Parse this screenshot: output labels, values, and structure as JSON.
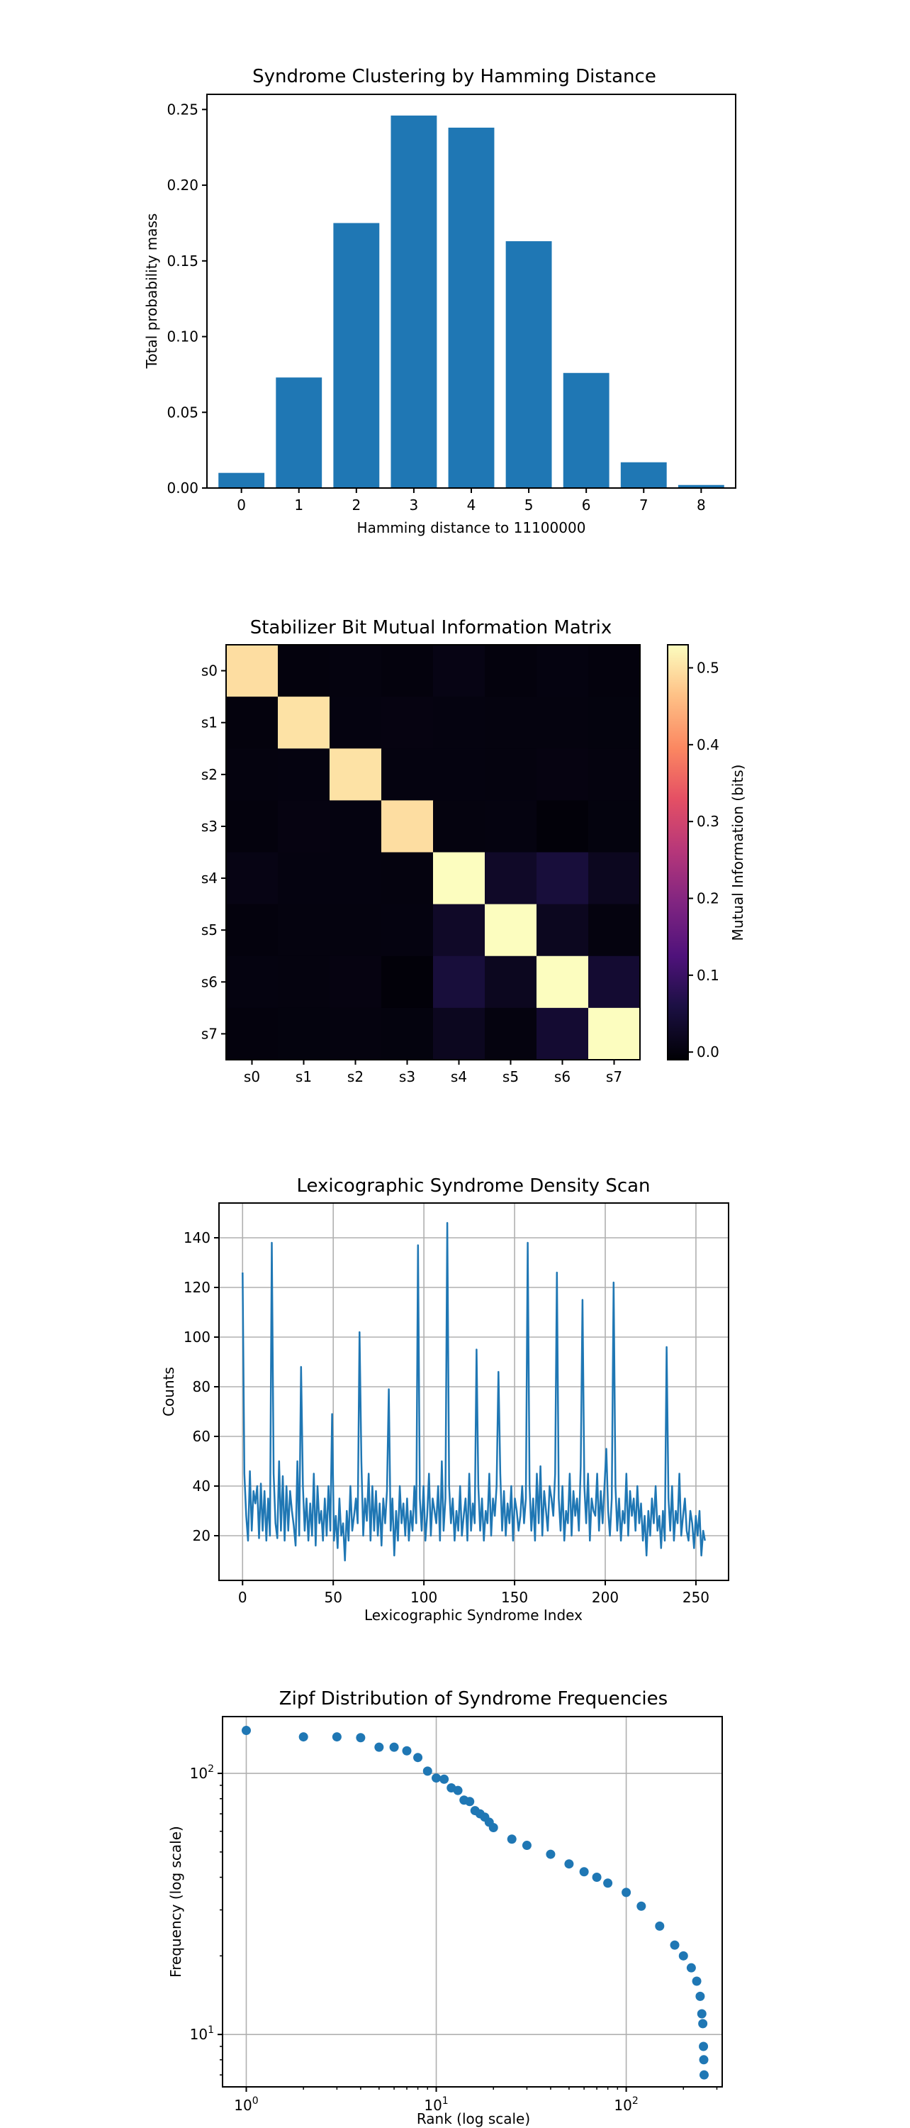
{
  "chart_data": [
    {
      "type": "bar",
      "title": "Syndrome Clustering by Hamming Distance",
      "xlabel": "Hamming distance to 11100000",
      "ylabel": "Total probability mass",
      "categories": [
        "0",
        "1",
        "2",
        "3",
        "4",
        "5",
        "6",
        "7",
        "8"
      ],
      "values": [
        0.01,
        0.073,
        0.175,
        0.246,
        0.238,
        0.163,
        0.076,
        0.017,
        0.002
      ],
      "ylim": [
        0,
        0.26
      ],
      "yticks": [
        "0.00",
        "0.05",
        "0.10",
        "0.15",
        "0.20",
        "0.25"
      ],
      "color": "#1f77b4",
      "grid": false
    },
    {
      "type": "heatmap",
      "title": "Stabilizer Bit Mutual Information Matrix",
      "row_labels": [
        "s0",
        "s1",
        "s2",
        "s3",
        "s4",
        "s5",
        "s6",
        "s7"
      ],
      "col_labels": [
        "s0",
        "s1",
        "s2",
        "s3",
        "s4",
        "s5",
        "s6",
        "s7"
      ],
      "colorbar_label": "Mutual Information (bits)",
      "colorbar_ticks": [
        "0.0",
        "0.1",
        "0.2",
        "0.3",
        "0.4",
        "0.5"
      ],
      "colormap": "magma",
      "vmin": -0.01,
      "vmax": 0.53,
      "matrix": [
        [
          0.495,
          0.0,
          0.002,
          0.0,
          0.008,
          0.0,
          0.003,
          0.0
        ],
        [
          0.0,
          0.5,
          0.003,
          0.004,
          0.003,
          0.002,
          0.002,
          0.001
        ],
        [
          0.002,
          0.003,
          0.5,
          0.003,
          0.003,
          0.002,
          0.004,
          0.002
        ],
        [
          0.0,
          0.004,
          0.003,
          0.495,
          0.002,
          0.003,
          -0.005,
          0.001
        ],
        [
          0.008,
          0.003,
          0.003,
          0.002,
          0.53,
          0.03,
          0.05,
          0.02
        ],
        [
          0.0,
          0.002,
          0.002,
          0.003,
          0.03,
          0.53,
          0.02,
          0.002
        ],
        [
          0.003,
          0.002,
          0.004,
          -0.005,
          0.05,
          0.02,
          0.53,
          0.04
        ],
        [
          0.0,
          0.001,
          0.002,
          0.001,
          0.02,
          0.002,
          0.04,
          0.53
        ]
      ]
    },
    {
      "type": "line",
      "title": "Lexicographic Syndrome Density Scan",
      "xlabel": "Lexicographic Syndrome Index",
      "ylabel": "Counts",
      "xlim": [
        -13,
        268
      ],
      "ylim": [
        2,
        154
      ],
      "xticks": [
        "0",
        "50",
        "100",
        "150",
        "200",
        "250"
      ],
      "yticks": [
        "20",
        "40",
        "60",
        "80",
        "100",
        "120",
        "140"
      ],
      "grid": true,
      "color": "#1f77b4",
      "x_range": [
        0,
        255
      ],
      "values": [
        126,
        45,
        28,
        18,
        46,
        22,
        38,
        33,
        40,
        19,
        41,
        22,
        38,
        18,
        35,
        20,
        138,
        45,
        25,
        19,
        50,
        22,
        44,
        18,
        40,
        22,
        38,
        30,
        24,
        16,
        50,
        20,
        88,
        40,
        22,
        35,
        18,
        33,
        20,
        45,
        16,
        40,
        25,
        30,
        18,
        35,
        20,
        40,
        22,
        69,
        18,
        28,
        15,
        35,
        20,
        25,
        10,
        30,
        18,
        40,
        22,
        28,
        35,
        25,
        102,
        50,
        20,
        35,
        26,
        45,
        18,
        40,
        22,
        38,
        20,
        33,
        16,
        35,
        25,
        38,
        79,
        22,
        35,
        12,
        30,
        18,
        40,
        25,
        33,
        20,
        35,
        18,
        30,
        22,
        40,
        25,
        137,
        35,
        22,
        40,
        18,
        28,
        45,
        20,
        35,
        30,
        25,
        40,
        18,
        50,
        22,
        35,
        146,
        40,
        25,
        35,
        18,
        30,
        22,
        40,
        20,
        28,
        35,
        18,
        45,
        22,
        33,
        25,
        95,
        40,
        22,
        35,
        18,
        30,
        25,
        45,
        20,
        35,
        28,
        40,
        86,
        45,
        22,
        38,
        20,
        33,
        25,
        40,
        18,
        35,
        30,
        22,
        28,
        40,
        25,
        35,
        138,
        40,
        22,
        35,
        18,
        45,
        25,
        48,
        20,
        38,
        30,
        22,
        40,
        35,
        28,
        45,
        126,
        35,
        22,
        40,
        18,
        30,
        25,
        45,
        20,
        38,
        28,
        35,
        22,
        48,
        115,
        40,
        25,
        45,
        18,
        35,
        30,
        28,
        45,
        22,
        38,
        25,
        40,
        55,
        30,
        20,
        35,
        122,
        40,
        22,
        35,
        18,
        30,
        25,
        45,
        20,
        38,
        28,
        35,
        22,
        40,
        25,
        33,
        18,
        28,
        12,
        30,
        20,
        35,
        25,
        40,
        22,
        28,
        15,
        30,
        18,
        96,
        35,
        22,
        40,
        18,
        30,
        25,
        45,
        20,
        28,
        35,
        22,
        18,
        30,
        25,
        15,
        28,
        20,
        30,
        12,
        22,
        18
      ]
    },
    {
      "type": "scatter",
      "title": "Zipf Distribution of Syndrome Frequencies",
      "xlabel": "Rank (log scale)",
      "ylabel": "Frequency (log scale)",
      "xscale": "log",
      "yscale": "log",
      "xlim": [
        0.75,
        320
      ],
      "ylim": [
        6.3,
        165
      ],
      "xticks": [
        {
          "base": "10",
          "exp": "0"
        },
        {
          "base": "10",
          "exp": "1"
        },
        {
          "base": "10",
          "exp": "2"
        }
      ],
      "yticks": [
        {
          "base": "10",
          "exp": "1"
        },
        {
          "base": "10",
          "exp": "2"
        }
      ],
      "grid": true,
      "color": "#1f77b4",
      "points": [
        [
          1,
          146
        ],
        [
          2,
          138
        ],
        [
          3,
          138
        ],
        [
          4,
          137
        ],
        [
          5,
          126
        ],
        [
          6,
          126
        ],
        [
          7,
          122
        ],
        [
          8,
          115
        ],
        [
          9,
          102
        ],
        [
          10,
          96
        ],
        [
          11,
          95
        ],
        [
          12,
          88
        ],
        [
          13,
          86
        ],
        [
          14,
          79
        ],
        [
          15,
          78
        ],
        [
          16,
          72
        ],
        [
          17,
          70
        ],
        [
          18,
          68
        ],
        [
          19,
          65
        ],
        [
          20,
          62
        ],
        [
          25,
          56
        ],
        [
          30,
          53
        ],
        [
          40,
          49
        ],
        [
          50,
          45
        ],
        [
          60,
          42
        ],
        [
          70,
          40
        ],
        [
          80,
          38
        ],
        [
          100,
          35
        ],
        [
          120,
          31
        ],
        [
          150,
          26
        ],
        [
          180,
          22
        ],
        [
          200,
          20
        ],
        [
          220,
          18
        ],
        [
          235,
          16
        ],
        [
          245,
          14
        ],
        [
          250,
          12
        ],
        [
          253,
          11
        ],
        [
          255,
          9
        ],
        [
          256,
          8
        ],
        [
          257,
          7
        ]
      ]
    }
  ]
}
